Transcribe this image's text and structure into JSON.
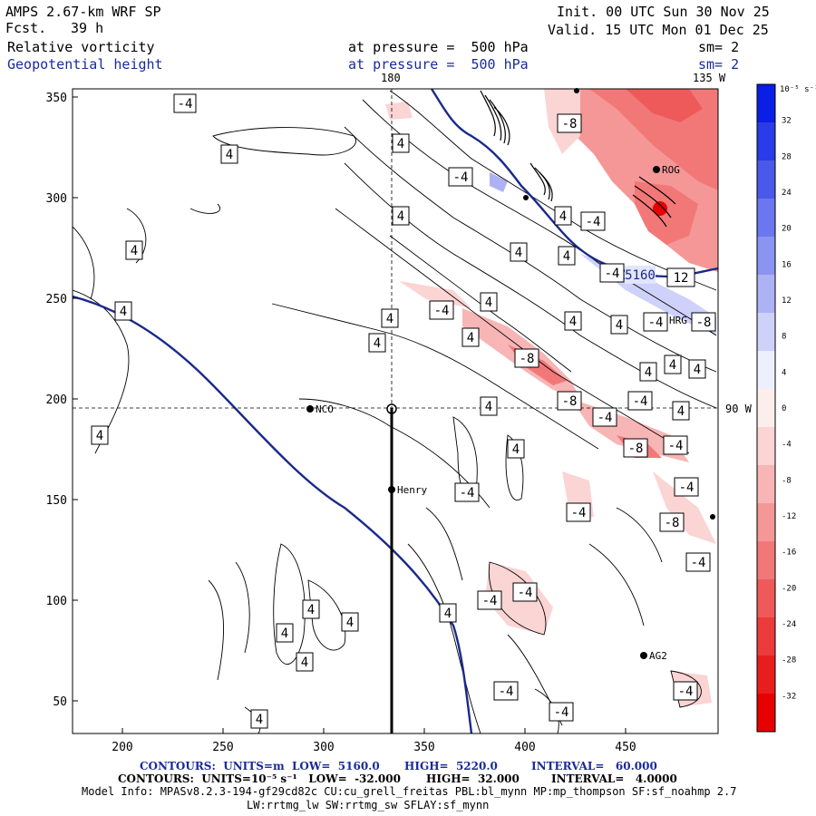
{
  "header": {
    "model": "AMPS 2.67-km WRF SP",
    "fcst_label": "Fcst.",
    "fcst_value": "39 h",
    "init": "Init. 00 UTC Sun 30 Nov 25",
    "valid": "Valid. 15 UTC Mon 01 Dec 25",
    "field1_name": "Relative vorticity",
    "field1_level": "at pressure =  500 hPa",
    "field1_sm": "sm= 2",
    "field2_name": "Geopotential height",
    "field2_level": "at pressure =  500 hPa",
    "field2_sm": "sm= 2"
  },
  "map": {
    "lon_labels": {
      "top_180": "180",
      "top_135w": "135 W",
      "right_90w": "90 W"
    },
    "x_ticks": [
      "200",
      "250",
      "300",
      "350",
      "400",
      "450"
    ],
    "y_ticks": [
      "350",
      "300",
      "250",
      "200",
      "150",
      "100",
      "50"
    ],
    "stations": [
      {
        "name": "NCO"
      },
      {
        "name": "Henry"
      },
      {
        "name": "ROG"
      },
      {
        "name": "HRG"
      },
      {
        "name": "AG2"
      }
    ],
    "height_contour_label": "5160",
    "contour_labels": [
      "4",
      "-4",
      "-8",
      "12"
    ]
  },
  "colorbar": {
    "unit_label": "10⁻⁵ s⁻¹",
    "ticks": [
      "32",
      "28",
      "24",
      "20",
      "16",
      "12",
      "8",
      "4",
      "0",
      "-4",
      "-8",
      "-12",
      "-16",
      "-20",
      "-24",
      "-28",
      "-32"
    ],
    "colors": [
      "#0a1ee6",
      "#2a3ce8",
      "#4a59ea",
      "#6b77ee",
      "#8c94f1",
      "#adb2f5",
      "#ced1f9",
      "#eeeffd",
      "#fdeeee",
      "#fbd4d4",
      "#f8b5b5",
      "#f59797",
      "#f27878",
      "#ee5a5a",
      "#eb3b3b",
      "#e81e1e",
      "#e60000"
    ]
  },
  "footer": {
    "line1_a": "CONTOURS:  UNITS=m  LOW=  5160.0",
    "line1_b": "HIGH=  5220.0",
    "line1_c": "INTERVAL=   60.000",
    "line2_a": "CONTOURS:  UNITS=10⁻⁵ s⁻¹   LOW=  -32.000",
    "line2_b": "HIGH=  32.000",
    "line2_c": "INTERVAL=   4.0000",
    "model_info": "Model Info: MPASv8.2.3-194-gf29cd82c CU:cu_grell_freitas PBL:bl_mynn MP:mp_thompson SF:sf_noahmp 2.7",
    "model_info2": "LW:rrtmg_lw SW:rrtmg_sw SFLAY:sf_mynn"
  }
}
